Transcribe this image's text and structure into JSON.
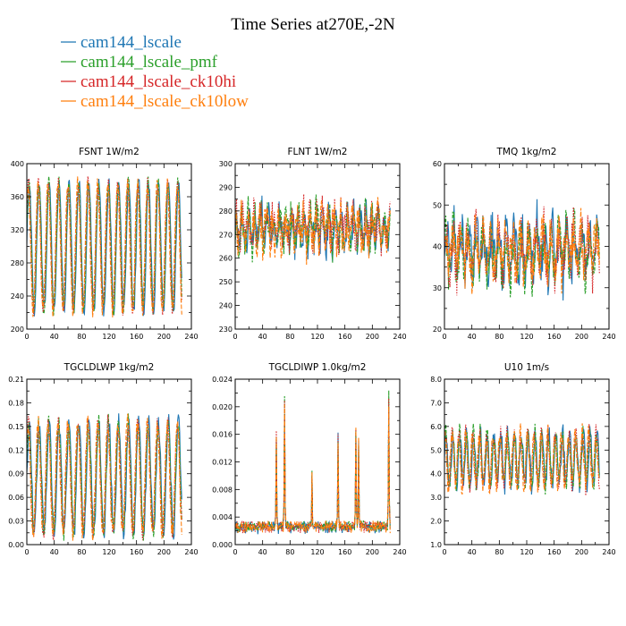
{
  "figure": {
    "title": "Time Series at270E,-2N"
  },
  "legend": [
    {
      "label": "cam144_lscale",
      "color": "#1f77b4"
    },
    {
      "label": "cam144_lscale_pmf",
      "color": "#2ca02c"
    },
    {
      "label": "cam144_lscale_ck10hi",
      "color": "#d62728"
    },
    {
      "label": "cam144_lscale_ck10low",
      "color": "#ff7f0e"
    }
  ],
  "chart_data": [
    {
      "type": "line",
      "title": "FSNT   1W/m2",
      "xlim": [
        0,
        240
      ],
      "ylim": [
        200,
        400
      ],
      "x_ticks": [
        "0",
        "40",
        "80",
        "120",
        "160",
        "200",
        "240"
      ],
      "y_ticks": [
        "200",
        "240",
        "280",
        "320",
        "360",
        "400"
      ],
      "signal": {
        "kind": "periodic",
        "mean": 300,
        "amp": 78,
        "period": 14.5,
        "noise": 8,
        "range": [
          205,
          392
        ]
      }
    },
    {
      "type": "line",
      "title": "FLNT   1W/m2",
      "xlim": [
        0,
        240
      ],
      "ylim": [
        230,
        300
      ],
      "x_ticks": [
        "0",
        "40",
        "80",
        "120",
        "160",
        "200",
        "240"
      ],
      "y_ticks": [
        "230",
        "240",
        "250",
        "260",
        "270",
        "280",
        "290",
        "300"
      ],
      "signal": {
        "kind": "noisy",
        "mean": 273,
        "amp": 6,
        "period": 9,
        "noise": 7,
        "range": [
          232,
          292
        ]
      }
    },
    {
      "type": "line",
      "title": "TMQ   1kg/m2",
      "xlim": [
        0,
        240
      ],
      "ylim": [
        20,
        60
      ],
      "x_ticks": [
        "0",
        "40",
        "80",
        "120",
        "160",
        "200",
        "240"
      ],
      "y_ticks": [
        "20",
        "30",
        "40",
        "50",
        "60"
      ],
      "signal": {
        "kind": "noisy",
        "mean": 39,
        "amp": 5,
        "period": 11,
        "noise": 5,
        "range": [
          23,
          56
        ]
      }
    },
    {
      "type": "line",
      "title": "TGCLDLWP   1kg/m2",
      "xlim": [
        0,
        240
      ],
      "ylim": [
        0.0,
        0.21
      ],
      "x_ticks": [
        "0",
        "40",
        "80",
        "120",
        "160",
        "200",
        "240"
      ],
      "y_ticks": [
        "0.00",
        "0.03",
        "0.06",
        "0.09",
        "0.12",
        "0.15",
        "0.18",
        "0.21"
      ],
      "signal": {
        "kind": "periodic",
        "mean": 0.085,
        "amp": 0.07,
        "period": 14.5,
        "noise": 0.012,
        "range": [
          0.005,
          0.19
        ]
      }
    },
    {
      "type": "line",
      "title": "TGCLDIWP   1.0kg/m2",
      "xlim": [
        0,
        240
      ],
      "ylim": [
        0.0,
        0.024
      ],
      "x_ticks": [
        "0",
        "40",
        "80",
        "120",
        "160",
        "200",
        "240"
      ],
      "y_ticks": [
        "0.000",
        "0.004",
        "0.008",
        "0.012",
        "0.016",
        "0.020",
        "0.024"
      ],
      "signal": {
        "kind": "spiky",
        "mean": 0.0015,
        "amp": 0.0008,
        "period": 6,
        "noise": 0.0012,
        "range": [
          0.0,
          0.023
        ],
        "spikes": [
          [
            60,
            0.017
          ],
          [
            72,
            0.022
          ],
          [
            112,
            0.011
          ],
          [
            150,
            0.017
          ],
          [
            176,
            0.019
          ],
          [
            180,
            0.016
          ],
          [
            224,
            0.023
          ]
        ]
      }
    },
    {
      "type": "line",
      "title": "U10   1m/s",
      "xlim": [
        0,
        240
      ],
      "ylim": [
        1.0,
        8.0
      ],
      "x_ticks": [
        "0",
        "40",
        "80",
        "120",
        "160",
        "200",
        "240"
      ],
      "y_ticks": [
        "1.0",
        "2.0",
        "3.0",
        "4.0",
        "5.0",
        "6.0",
        "7.0",
        "8.0"
      ],
      "signal": {
        "kind": "periodic",
        "mean": 4.6,
        "amp": 1.1,
        "period": 10,
        "noise": 0.45,
        "range": [
          1.9,
          7.2
        ]
      }
    }
  ]
}
